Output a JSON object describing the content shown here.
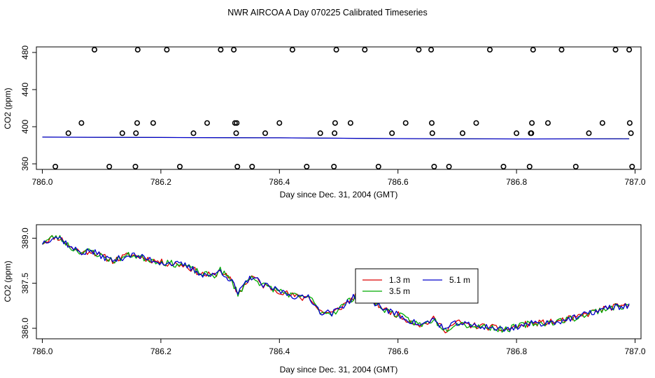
{
  "title": "NWR AIRCOA A  Day 070225  Calibrated Timeseries",
  "chart_data": [
    {
      "type": "scatter",
      "title": "",
      "xlabel": "Day since Dec. 31, 2004 (GMT)",
      "ylabel": "CO2 (ppm)",
      "xlim": [
        785.99,
        787.01
      ],
      "ylim": [
        354,
        486
      ],
      "xticks": [
        786.0,
        786.2,
        786.4,
        786.6,
        786.8,
        787.0
      ],
      "xtick_labels": [
        "786.0",
        "786.2",
        "786.4",
        "786.6",
        "786.8",
        "787.0"
      ],
      "yticks": [
        360,
        400,
        440,
        480
      ],
      "ytick_labels": [
        "360",
        "400",
        "440",
        "480"
      ],
      "colors": {
        "calib_points": "#000000",
        "line_red": "#dd0000",
        "line_green": "#00aa00",
        "line_blue": "#0000cc"
      },
      "calib_points": [
        [
          786.022,
          357
        ],
        [
          786.044,
          393
        ],
        [
          786.066,
          404
        ],
        [
          786.088,
          483
        ],
        [
          786.113,
          357
        ],
        [
          786.135,
          393
        ],
        [
          786.157,
          357
        ],
        [
          786.158,
          393
        ],
        [
          786.16,
          404
        ],
        [
          786.161,
          483
        ],
        [
          786.187,
          404
        ],
        [
          786.21,
          483
        ],
        [
          786.232,
          357
        ],
        [
          786.255,
          393
        ],
        [
          786.278,
          404
        ],
        [
          786.301,
          483
        ],
        [
          786.323,
          483
        ],
        [
          786.325,
          404
        ],
        [
          786.327,
          393
        ],
        [
          786.328,
          404
        ],
        [
          786.329,
          357
        ],
        [
          786.354,
          357
        ],
        [
          786.376,
          393
        ],
        [
          786.4,
          404
        ],
        [
          786.422,
          483
        ],
        [
          786.446,
          357
        ],
        [
          786.469,
          393
        ],
        [
          786.492,
          357
        ],
        [
          786.493,
          393
        ],
        [
          786.494,
          404
        ],
        [
          786.496,
          483
        ],
        [
          786.52,
          404
        ],
        [
          786.544,
          483
        ],
        [
          786.567,
          357
        ],
        [
          786.59,
          393
        ],
        [
          786.613,
          404
        ],
        [
          786.635,
          483
        ],
        [
          786.656,
          483
        ],
        [
          786.657,
          404
        ],
        [
          786.658,
          393
        ],
        [
          786.661,
          357
        ],
        [
          786.686,
          357
        ],
        [
          786.709,
          393
        ],
        [
          786.732,
          404
        ],
        [
          786.755,
          483
        ],
        [
          786.778,
          357
        ],
        [
          786.8,
          393
        ],
        [
          786.822,
          357
        ],
        [
          786.824,
          393
        ],
        [
          786.825,
          393
        ],
        [
          786.826,
          404
        ],
        [
          786.828,
          483
        ],
        [
          786.853,
          404
        ],
        [
          786.876,
          483
        ],
        [
          786.9,
          357
        ],
        [
          786.922,
          393
        ],
        [
          786.945,
          404
        ],
        [
          786.967,
          483
        ],
        [
          786.99,
          483
        ],
        [
          786.991,
          404
        ],
        [
          786.993,
          393
        ],
        [
          786.995,
          357
        ]
      ],
      "flat_line": {
        "x": [
          786.0,
          786.2,
          786.4,
          786.6,
          786.8,
          786.99
        ],
        "y": [
          388.8,
          388.4,
          388.0,
          387.2,
          386.8,
          387.0
        ]
      }
    },
    {
      "type": "line",
      "title": "",
      "xlabel": "Day since Dec. 31, 2004 (GMT)",
      "ylabel": "CO2 (ppm)",
      "xlim": [
        785.99,
        787.01
      ],
      "ylim": [
        385.65,
        389.45
      ],
      "xticks": [
        786.0,
        786.2,
        786.4,
        786.6,
        786.8,
        787.0
      ],
      "xtick_labels": [
        "786.0",
        "786.2",
        "786.4",
        "786.6",
        "786.8",
        "787.0"
      ],
      "yticks": [
        386.0,
        387.5,
        389.0
      ],
      "ytick_labels": [
        "386.0",
        "387.5",
        "389.0"
      ],
      "legend": {
        "placement": "center-right"
      },
      "anchors": {
        "x": [
          786.0,
          786.01,
          786.02,
          786.03,
          786.04,
          786.05,
          786.06,
          786.07,
          786.08,
          786.1,
          786.12,
          786.14,
          786.15,
          786.17,
          786.2,
          786.24,
          786.27,
          786.29,
          786.3,
          786.32,
          786.33,
          786.345,
          786.355,
          786.37,
          786.4,
          786.42,
          786.44,
          786.45,
          786.46,
          786.47,
          786.49,
          786.51,
          786.53,
          786.55,
          786.58,
          786.6,
          786.62,
          786.64,
          786.66,
          786.68,
          786.7,
          786.72,
          786.75,
          786.78,
          786.8,
          786.82,
          786.86,
          786.9,
          786.93,
          786.96,
          786.99
        ],
        "y": [
          388.85,
          388.95,
          389.05,
          389.0,
          388.85,
          388.65,
          388.6,
          388.5,
          388.6,
          388.4,
          388.25,
          388.4,
          388.45,
          388.35,
          388.2,
          388.1,
          387.8,
          387.75,
          387.95,
          387.55,
          387.15,
          387.55,
          387.75,
          387.45,
          387.25,
          387.1,
          387.0,
          387.1,
          386.75,
          386.55,
          386.5,
          386.8,
          387.1,
          387.0,
          386.6,
          386.45,
          386.25,
          386.1,
          386.3,
          385.95,
          386.2,
          386.1,
          386.05,
          385.95,
          386.05,
          386.15,
          386.2,
          386.35,
          386.55,
          386.7,
          386.75
        ]
      },
      "series": [
        {
          "name": "1.3 m",
          "color": "#dd0000",
          "seed": 11
        },
        {
          "name": "3.5 m",
          "color": "#00aa00",
          "seed": 23
        },
        {
          "name": "5.1 m",
          "color": "#0000cc",
          "seed": 37
        }
      ]
    }
  ]
}
